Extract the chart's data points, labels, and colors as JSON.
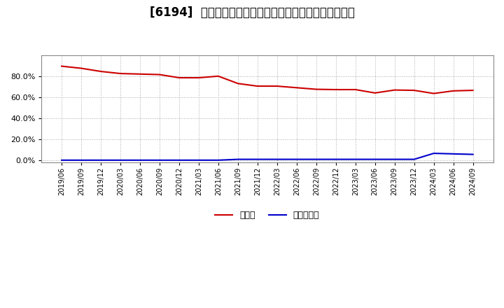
{
  "title": "[6194]  現預金、有利子負債の総資産に対する比率の推移",
  "cash_dates": [
    "2019/06",
    "2019/09",
    "2019/12",
    "2020/03",
    "2020/06",
    "2020/09",
    "2020/12",
    "2021/03",
    "2021/06",
    "2021/09",
    "2021/12",
    "2022/03",
    "2022/06",
    "2022/09",
    "2022/12",
    "2023/03",
    "2023/06",
    "2023/09",
    "2023/12",
    "2024/03",
    "2024/06",
    "2024/09"
  ],
  "cash_values": [
    0.895,
    0.875,
    0.845,
    0.825,
    0.82,
    0.815,
    0.785,
    0.785,
    0.8,
    0.73,
    0.705,
    0.705,
    0.69,
    0.675,
    0.672,
    0.672,
    0.64,
    0.668,
    0.665,
    0.635,
    0.66,
    0.665
  ],
  "debt_dates": [
    "2019/06",
    "2019/09",
    "2019/12",
    "2020/03",
    "2020/06",
    "2020/09",
    "2020/12",
    "2021/03",
    "2021/06",
    "2021/09",
    "2021/12",
    "2022/03",
    "2022/06",
    "2022/09",
    "2022/12",
    "2023/03",
    "2023/06",
    "2023/09",
    "2023/12",
    "2024/03",
    "2024/06",
    "2024/09"
  ],
  "debt_values": [
    0.0,
    0.0,
    0.0,
    0.0,
    0.0,
    0.0,
    0.0,
    0.0,
    0.0,
    0.008,
    0.008,
    0.008,
    0.008,
    0.008,
    0.008,
    0.008,
    0.008,
    0.008,
    0.008,
    0.065,
    0.06,
    0.055
  ],
  "cash_color": "#cc0000",
  "debt_color": "#0000cc",
  "background_color": "#ffffff",
  "plot_bg_color": "#ffffff",
  "grid_color": "#aaaaaa",
  "yticks": [
    0.0,
    0.2,
    0.4,
    0.6,
    0.8
  ],
  "ylim": [
    -0.02,
    1.0
  ],
  "legend_cash": "現預金",
  "legend_debt": "有利子負債",
  "title_fontsize": 12
}
